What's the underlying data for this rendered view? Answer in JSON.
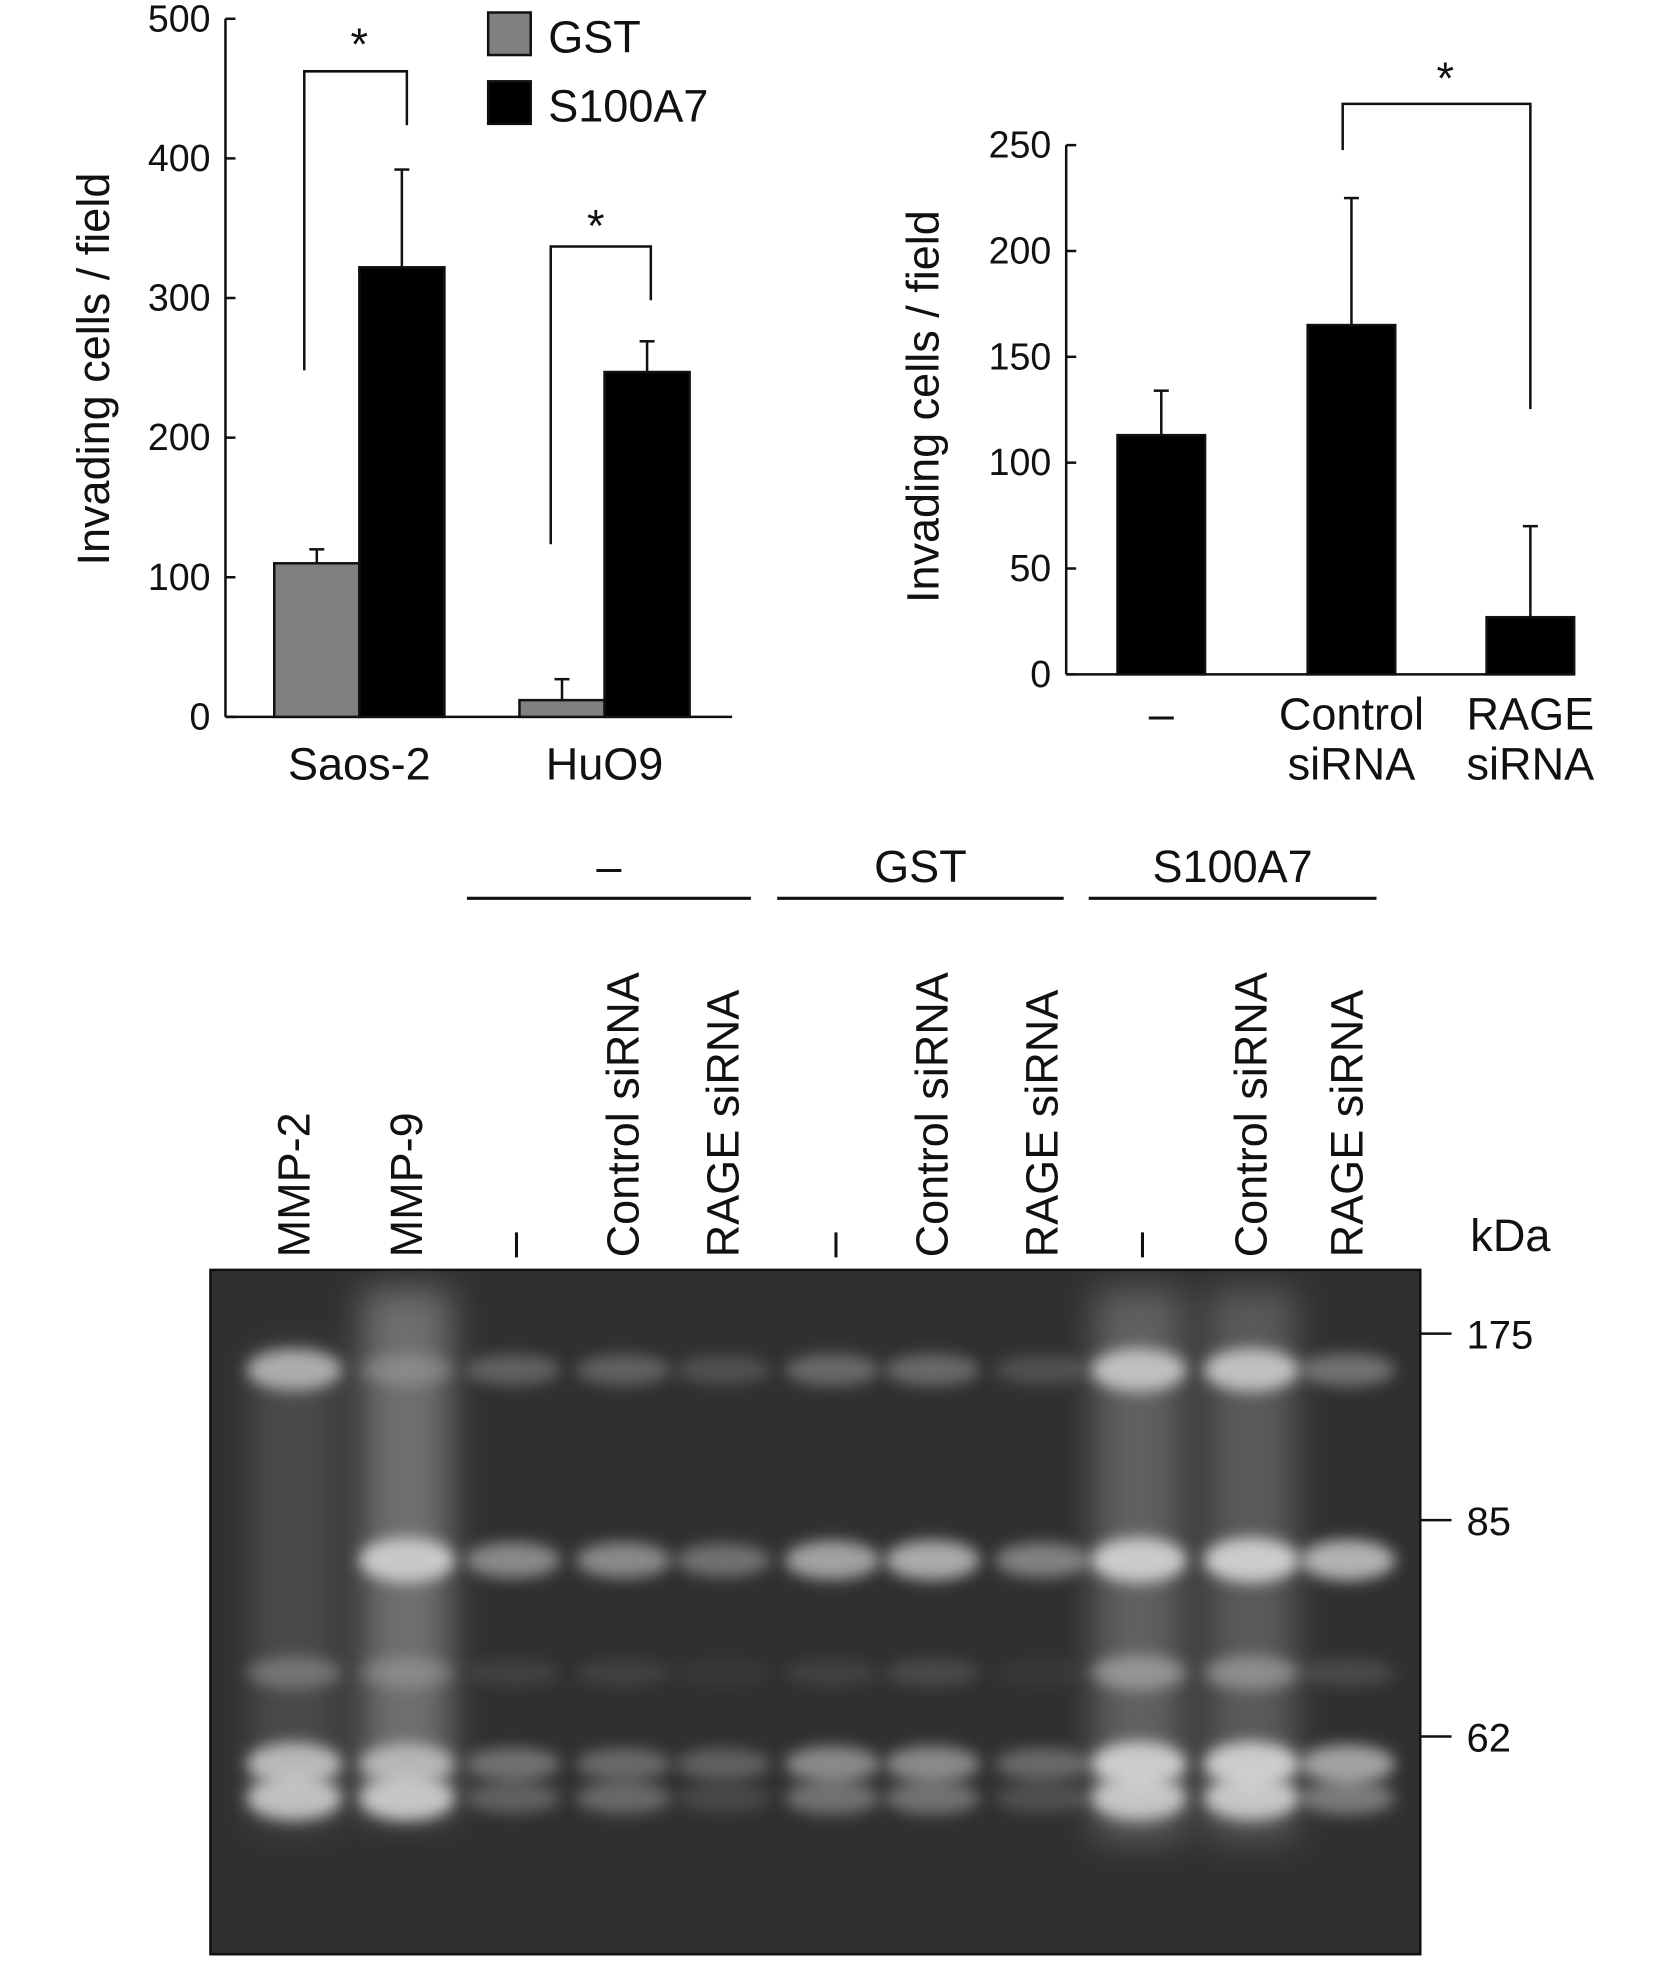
{
  "chart_data": [
    {
      "type": "bar",
      "y_label": "Invading cells / field",
      "categories": [
        "Saos-2",
        "HuO9"
      ],
      "series": [
        {
          "name": "GST",
          "color": "#808080",
          "values": [
            110,
            12
          ],
          "errors": [
            10,
            15
          ]
        },
        {
          "name": "S100A7",
          "color": "#000000",
          "values": [
            322,
            247
          ],
          "errors": [
            70,
            22
          ]
        }
      ],
      "ylim": [
        0,
        500
      ],
      "yticks": [
        0,
        100,
        200,
        300,
        400,
        500
      ],
      "annotations": [
        "*",
        "*"
      ]
    },
    {
      "type": "bar",
      "y_label": "Invading cells / field",
      "categories": [
        "–",
        "Control siRNA",
        "RAGE siRNA"
      ],
      "values": [
        113,
        165,
        27
      ],
      "errors": [
        21,
        60,
        43
      ],
      "color": "#000000",
      "ylim": [
        0,
        250
      ],
      "yticks": [
        0,
        50,
        100,
        150,
        200,
        250
      ],
      "annotations": [
        "*"
      ]
    }
  ],
  "gel": {
    "groups": [
      "–",
      "GST",
      "S100A7"
    ],
    "lanes": [
      "MMP-2",
      "MMP-9",
      "–",
      "Control siRNA",
      "RAGE siRNA",
      "–",
      "Control siRNA",
      "RAGE siRNA",
      "–",
      "Control siRNA",
      "RAGE siRNA"
    ],
    "unit": "kDa",
    "markers": [
      175,
      85,
      62
    ]
  }
}
